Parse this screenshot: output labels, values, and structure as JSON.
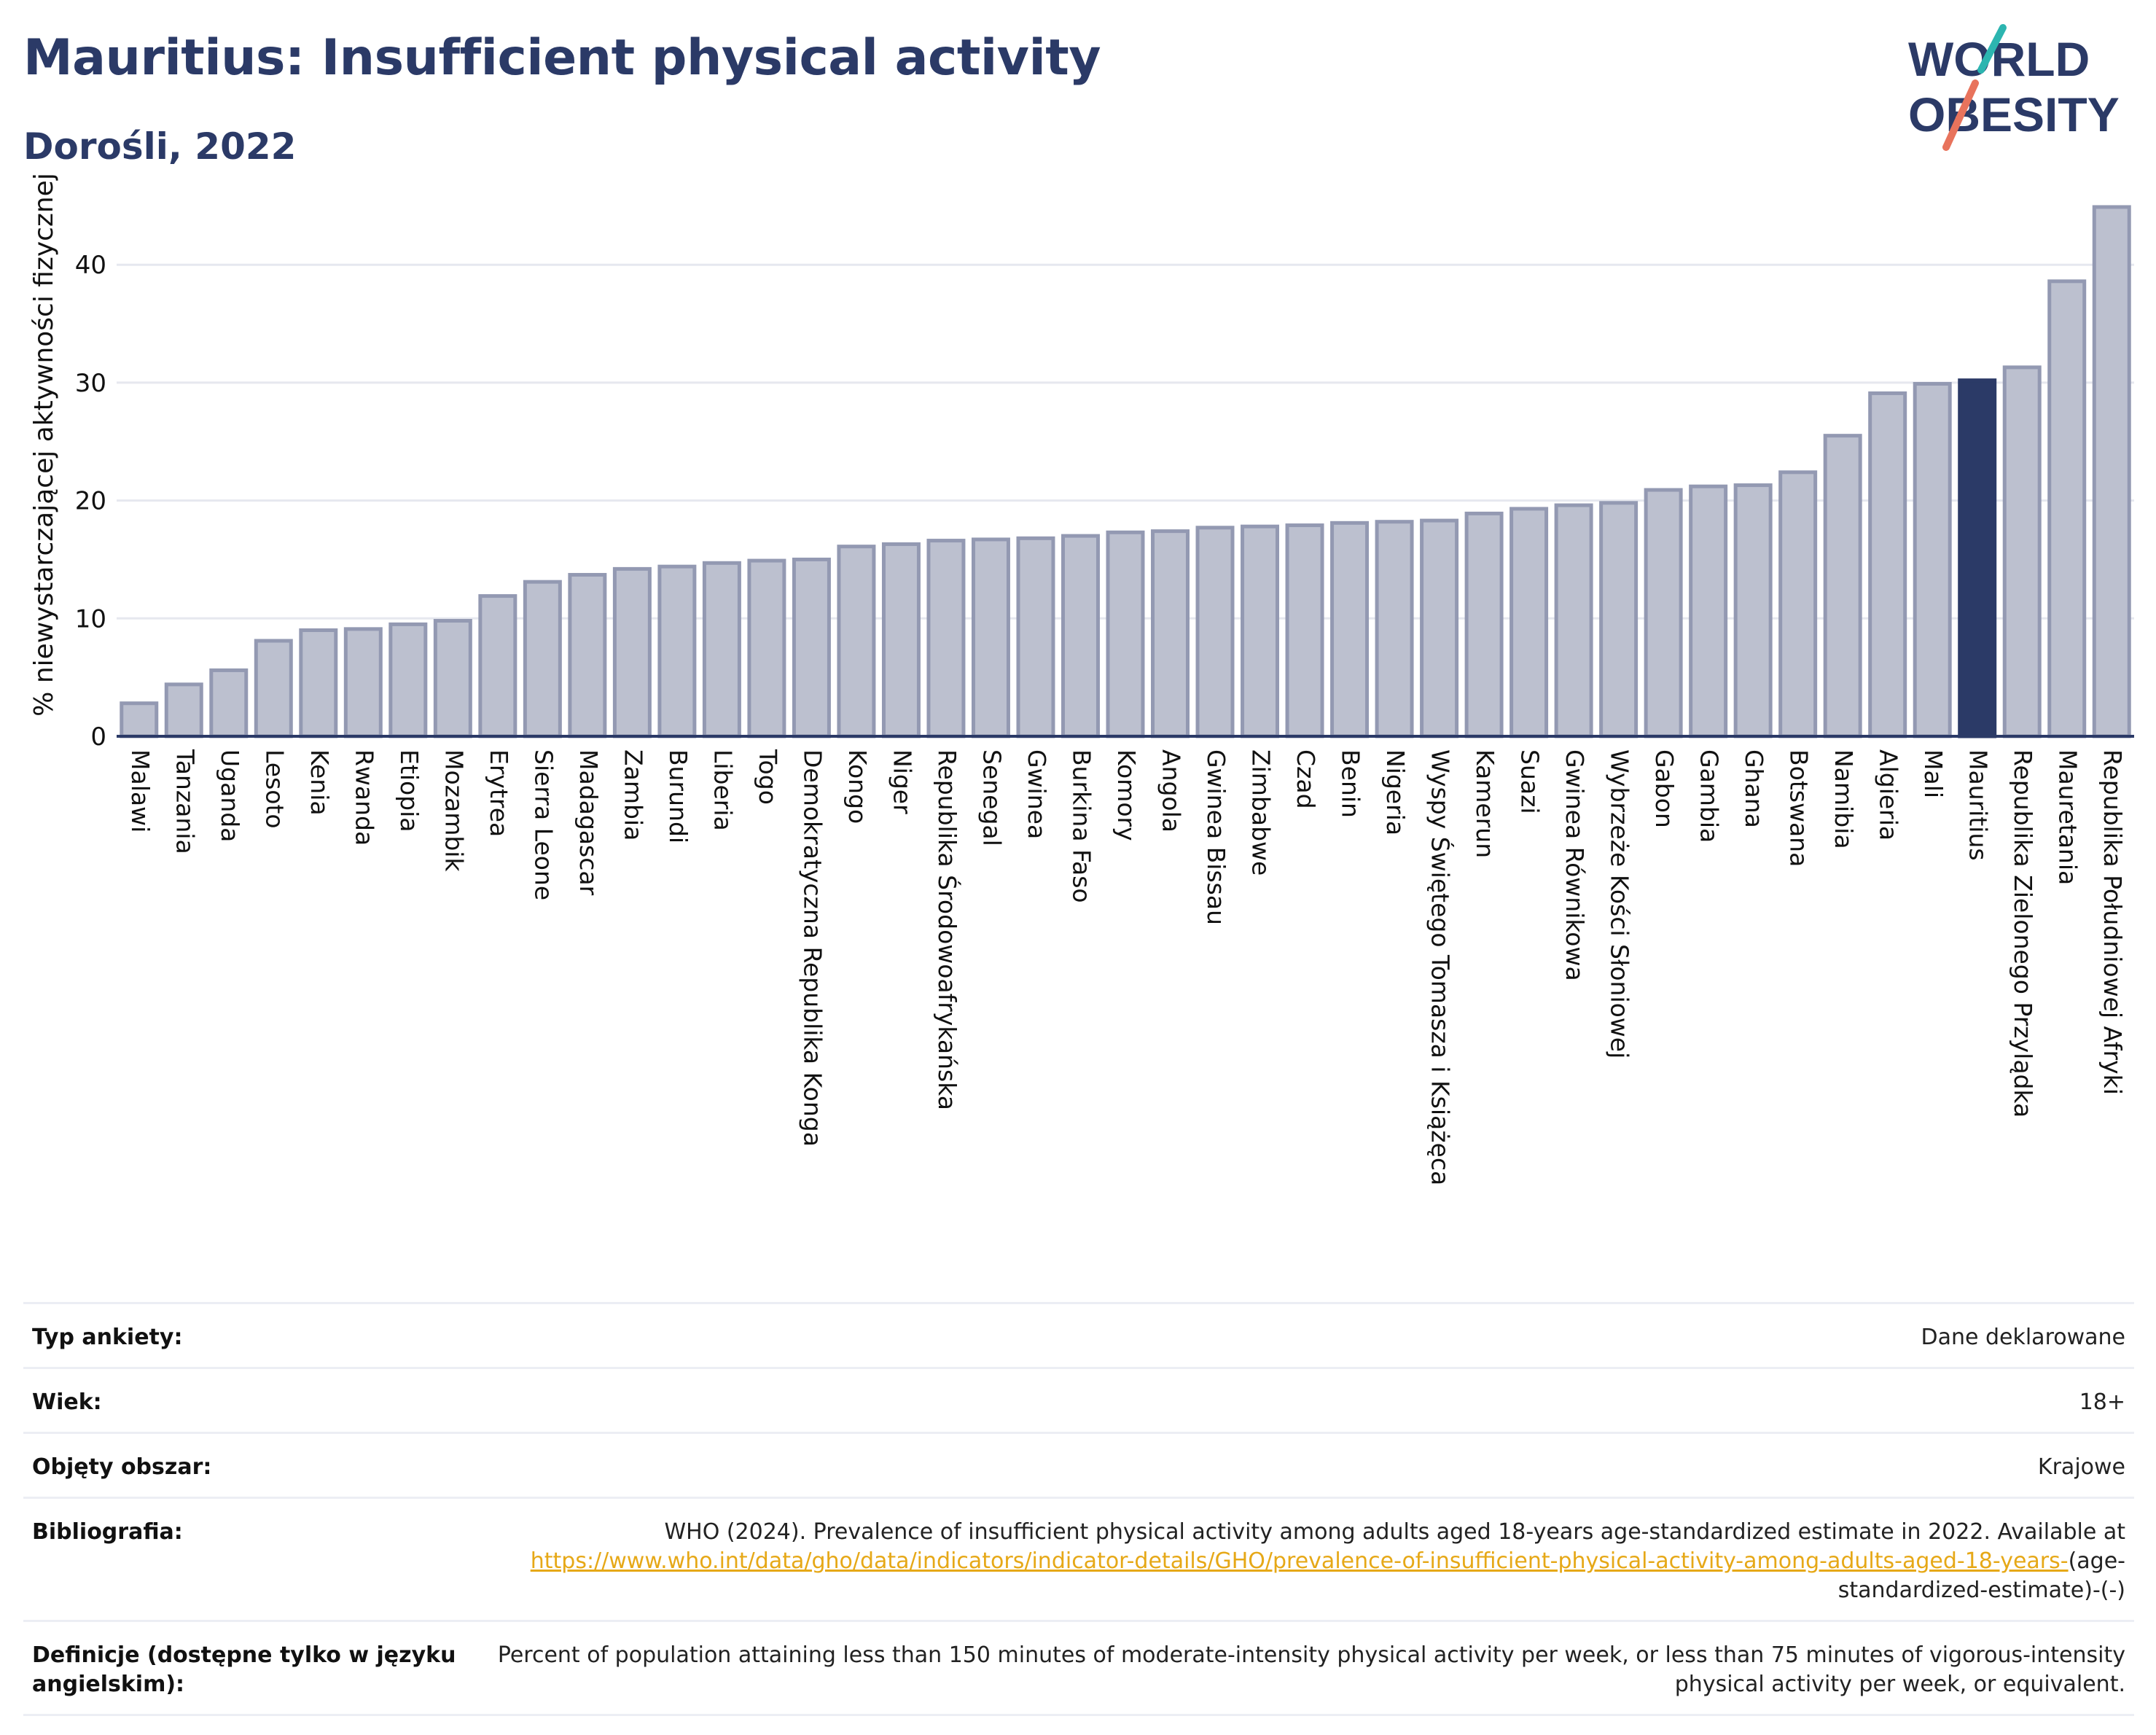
{
  "header": {
    "title": "Mauritius: Insufficient physical activity",
    "subtitle": "Dorośli, 2022",
    "logo_line1": "WORLD",
    "logo_line2": "OBESITY"
  },
  "colors": {
    "bar": "#bcc0cf",
    "bar_stroke": "#9399b2",
    "highlight": "#2b3a67",
    "title": "#2b3a67",
    "link": "#e6a817",
    "logo_teal": "#2cb5b0",
    "logo_coral": "#e8735c"
  },
  "chart_data": {
    "type": "bar",
    "title": "Mauritius: Insufficient physical activity",
    "subtitle": "Dorośli, 2022",
    "ylabel": "% niewystarczającej aktywności fizycznej",
    "ylim": [
      0,
      47
    ],
    "yticks": [
      0,
      10,
      20,
      30,
      40
    ],
    "grid": true,
    "highlight": "Mauritius",
    "categories": [
      "Malawi",
      "Tanzania",
      "Uganda",
      "Lesoto",
      "Kenia",
      "Rwanda",
      "Etiopia",
      "Mozambik",
      "Erytrea",
      "Sierra Leone",
      "Madagascar",
      "Zambia",
      "Burundi",
      "Liberia",
      "Togo",
      "Demokratyczna Republika Konga",
      "Kongo",
      "Niger",
      "Republika Środowoafrykańska",
      "Senegal",
      "Gwinea",
      "Burkina Faso",
      "Komory",
      "Angola",
      "Gwinea Bissau",
      "Zimbabwe",
      "Czad",
      "Benin",
      "Nigeria",
      "Wyspy Świętego Tomasza i Książęca",
      "Kamerun",
      "Suazi",
      "Gwinea Równikowa",
      "Wybrzeże Kości Słoniowej",
      "Gabon",
      "Gambia",
      "Ghana",
      "Botswana",
      "Namibia",
      "Algieria",
      "Mali",
      "Mauritius",
      "Republika Zielonego Przylądka",
      "Mauretania",
      "Republika Południowej Afryki"
    ],
    "values": [
      2.8,
      4.4,
      5.6,
      8.1,
      9.0,
      9.1,
      9.5,
      9.8,
      11.9,
      13.1,
      13.7,
      14.2,
      14.4,
      14.7,
      14.9,
      15.0,
      16.1,
      16.3,
      16.6,
      16.7,
      16.8,
      17.0,
      17.3,
      17.4,
      17.7,
      17.8,
      17.9,
      18.1,
      18.2,
      18.3,
      18.9,
      19.3,
      19.6,
      19.8,
      20.9,
      21.2,
      21.3,
      22.4,
      25.5,
      29.1,
      29.9,
      30.2,
      31.3,
      38.6,
      44.9
    ]
  },
  "info": {
    "survey_label": "Typ ankiety:",
    "survey_value": "Dane deklarowane",
    "age_label": "Wiek:",
    "age_value": "18+",
    "area_label": "Objęty obszar:",
    "area_value": "Krajowe",
    "bib_label": "Bibliografia:",
    "bib_text": "WHO (2024). Prevalence of insufficient physical activity among adults aged 18-years age-standardized estimate in 2022. Available at",
    "bib_link": "https://www.who.int/data/gho/data/indicators/indicator-details/GHO/prevalence-of-insufficient-physical-activity-among-adults-aged-18-years-",
    "bib_suffix": "(age-standardized-estimate)-(-)",
    "def_label": "Definicje (dostępne tylko w języku angielskim):",
    "def_value": "Percent of population attaining less than 150 minutes of moderate-intensity physical activity per week, or less than 75 minutes of vigorous-intensity physical activity per week, or equivalent."
  }
}
